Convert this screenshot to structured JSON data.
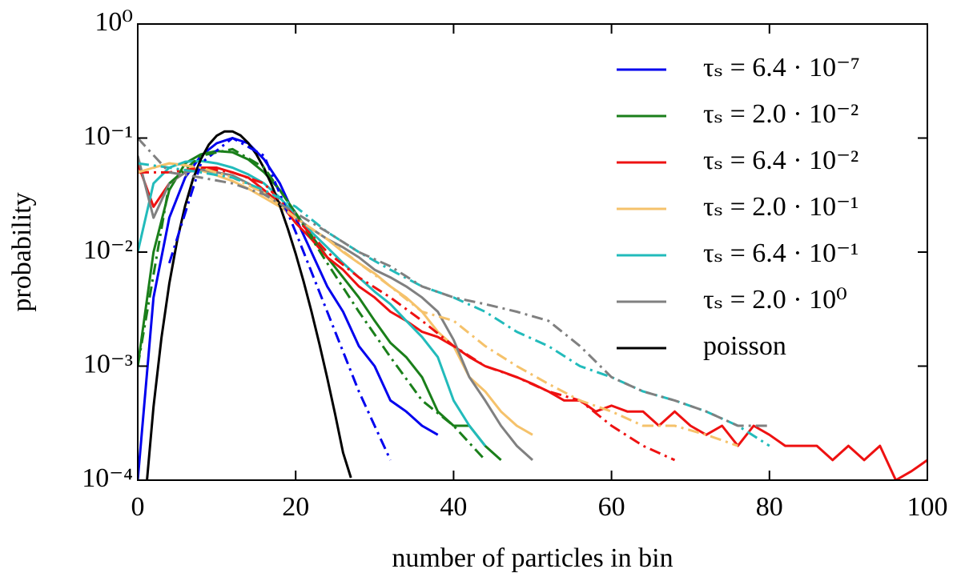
{
  "chart_data": {
    "type": "line",
    "xlabel": "number of particles in bin",
    "ylabel": "probability",
    "xlim": [
      0,
      100
    ],
    "xticks": [
      0,
      20,
      40,
      60,
      80,
      100
    ],
    "ylim": [
      0.0001,
      1
    ],
    "ylog": true,
    "yticks": [
      {
        "value": 0.0001,
        "label": "10⁻⁴"
      },
      {
        "value": 0.001,
        "label": "10⁻³"
      },
      {
        "value": 0.01,
        "label": "10⁻²"
      },
      {
        "value": 0.1,
        "label": "10⁻¹"
      },
      {
        "value": 1,
        "label": "10⁰"
      }
    ],
    "legend": "upper right",
    "series": [
      {
        "name": "τₛ = 6.4 · 10⁻⁷",
        "color": "#0000ee",
        "style": "solid",
        "x": [
          0,
          2,
          4,
          6,
          8,
          10,
          12,
          14,
          16,
          18,
          20,
          22,
          24,
          26,
          28,
          30,
          32,
          34,
          36,
          38
        ],
        "values": [
          0.0001,
          0.004,
          0.02,
          0.045,
          0.07,
          0.09,
          0.1,
          0.09,
          0.065,
          0.04,
          0.02,
          0.01,
          0.005,
          0.003,
          0.0015,
          0.001,
          0.0005,
          0.0004,
          0.0003,
          0.00025
        ]
      },
      {
        "name": "τₛ = 2.0 · 10⁻²",
        "color": "#1a7f1a",
        "style": "solid",
        "x": [
          0,
          2,
          4,
          6,
          8,
          10,
          12,
          14,
          16,
          18,
          20,
          22,
          24,
          26,
          28,
          30,
          32,
          34,
          36,
          38,
          40,
          42,
          44,
          46
        ],
        "values": [
          0.001,
          0.01,
          0.035,
          0.06,
          0.072,
          0.077,
          0.075,
          0.065,
          0.05,
          0.035,
          0.022,
          0.014,
          0.009,
          0.006,
          0.004,
          0.0025,
          0.0016,
          0.0012,
          0.0008,
          0.0004,
          0.0003,
          0.0003,
          0.0002,
          0.00015
        ]
      },
      {
        "name": "τₛ = 6.4 · 10⁻²",
        "color": "#ee1111",
        "style": "solid",
        "x": [
          0,
          2,
          4,
          6,
          8,
          10,
          12,
          14,
          16,
          18,
          20,
          22,
          24,
          26,
          28,
          30,
          32,
          34,
          36,
          38,
          40,
          42,
          44,
          46,
          48,
          50,
          52,
          54,
          56,
          58,
          60,
          62,
          64,
          66,
          68,
          70,
          72,
          74,
          76,
          78,
          80,
          82,
          84,
          86,
          88,
          90,
          92,
          94,
          96,
          98,
          100
        ],
        "values": [
          0.06,
          0.025,
          0.04,
          0.05,
          0.055,
          0.055,
          0.05,
          0.045,
          0.035,
          0.027,
          0.018,
          0.013,
          0.009,
          0.007,
          0.005,
          0.004,
          0.003,
          0.0025,
          0.002,
          0.0018,
          0.0015,
          0.0012,
          0.001,
          0.0009,
          0.0008,
          0.0007,
          0.0006,
          0.0005,
          0.0005,
          0.0004,
          0.00045,
          0.0004,
          0.0004,
          0.0003,
          0.0004,
          0.0003,
          0.00025,
          0.0003,
          0.0002,
          0.0003,
          0.00025,
          0.0002,
          0.0002,
          0.0002,
          0.00015,
          0.0002,
          0.00015,
          0.0002,
          0.0001,
          0.00012,
          0.00015
        ]
      },
      {
        "name": "τₛ = 2.0 · 10⁻¹",
        "color": "#f5c26b",
        "style": "solid",
        "x": [
          0,
          2,
          4,
          6,
          8,
          10,
          12,
          14,
          16,
          18,
          20,
          22,
          24,
          26,
          28,
          30,
          32,
          34,
          36,
          38,
          40,
          42,
          44,
          46,
          48,
          50
        ],
        "values": [
          0.05,
          0.055,
          0.06,
          0.058,
          0.052,
          0.047,
          0.042,
          0.036,
          0.03,
          0.025,
          0.02,
          0.016,
          0.013,
          0.01,
          0.008,
          0.0065,
          0.005,
          0.004,
          0.003,
          0.002,
          0.0015,
          0.0008,
          0.0006,
          0.0004,
          0.0003,
          0.00025
        ]
      },
      {
        "name": "τₛ = 6.4 · 10⁻¹",
        "color": "#22bbbb",
        "style": "solid",
        "x": [
          0,
          2,
          4,
          6,
          8,
          10,
          12,
          14,
          16,
          18,
          20,
          22,
          24,
          26,
          28,
          30,
          32,
          34,
          36,
          38,
          40,
          42,
          44
        ],
        "values": [
          0.01,
          0.04,
          0.055,
          0.062,
          0.063,
          0.06,
          0.055,
          0.048,
          0.04,
          0.03,
          0.021,
          0.015,
          0.011,
          0.008,
          0.006,
          0.0045,
          0.0035,
          0.0025,
          0.0018,
          0.0012,
          0.0005,
          0.0003,
          0.0002
        ]
      },
      {
        "name": "τₛ = 2.0 · 10⁰",
        "color": "#808080",
        "style": "solid",
        "x": [
          0,
          2,
          4,
          6,
          8,
          10,
          12,
          14,
          16,
          18,
          20,
          22,
          24,
          26,
          28,
          30,
          32,
          34,
          36,
          38,
          40,
          42,
          44,
          46,
          48,
          50
        ],
        "values": [
          0.07,
          0.02,
          0.04,
          0.05,
          0.053,
          0.05,
          0.047,
          0.04,
          0.033,
          0.026,
          0.02,
          0.016,
          0.013,
          0.011,
          0.009,
          0.007,
          0.006,
          0.005,
          0.004,
          0.003,
          0.0017,
          0.0008,
          0.0005,
          0.0003,
          0.0002,
          0.00015
        ]
      },
      {
        "name": "poisson",
        "color": "#000000",
        "style": "solid",
        "x": [
          1,
          2,
          3,
          4,
          5,
          6,
          7,
          8,
          9,
          10,
          11,
          12,
          13,
          14,
          15,
          16,
          17,
          18,
          19,
          20,
          21,
          22,
          23,
          24,
          25,
          26,
          27
        ],
        "values": [
          7.4e-05,
          0.00044,
          0.00177,
          0.0053,
          0.0127,
          0.0255,
          0.0437,
          0.0655,
          0.0874,
          0.1048,
          0.1144,
          0.1144,
          0.1056,
          0.0905,
          0.0724,
          0.0543,
          0.0383,
          0.0255,
          0.0161,
          0.00968,
          0.00553,
          0.00302,
          0.00157,
          0.000788,
          0.000378,
          0.000174,
          0.000105
        ]
      },
      {
        "color": "#0000ee",
        "style": "dashdot",
        "x": [
          4,
          8,
          12,
          16,
          20,
          24,
          28,
          32
        ],
        "values": [
          0.008,
          0.06,
          0.1,
          0.07,
          0.015,
          0.003,
          0.0006,
          0.00015
        ]
      },
      {
        "color": "#1a7f1a",
        "style": "dashdot",
        "x": [
          0,
          4,
          8,
          12,
          16,
          20,
          24,
          28,
          32,
          36,
          40,
          44
        ],
        "values": [
          0.001,
          0.04,
          0.07,
          0.08,
          0.055,
          0.022,
          0.008,
          0.003,
          0.0012,
          0.0005,
          0.0003,
          0.00015
        ]
      },
      {
        "color": "#ee1111",
        "style": "dashdot",
        "x": [
          0,
          4,
          8,
          12,
          16,
          20,
          24,
          28,
          32,
          36,
          40,
          44,
          48,
          52,
          56,
          60,
          64,
          68
        ],
        "values": [
          0.05,
          0.05,
          0.055,
          0.05,
          0.04,
          0.02,
          0.01,
          0.006,
          0.004,
          0.0025,
          0.0015,
          0.001,
          0.0008,
          0.0006,
          0.0005,
          0.0003,
          0.0002,
          0.00015
        ]
      },
      {
        "color": "#f5c26b",
        "style": "dashdot",
        "x": [
          0,
          4,
          8,
          12,
          16,
          20,
          24,
          28,
          32,
          36,
          40,
          44,
          48,
          52,
          56,
          60,
          64,
          68,
          72,
          76
        ],
        "values": [
          0.05,
          0.06,
          0.055,
          0.045,
          0.033,
          0.02,
          0.013,
          0.008,
          0.005,
          0.003,
          0.0025,
          0.0015,
          0.001,
          0.0007,
          0.0005,
          0.0004,
          0.0003,
          0.0003,
          0.00025,
          0.0002
        ]
      },
      {
        "color": "#22bbbb",
        "style": "dashdot",
        "x": [
          0,
          4,
          8,
          12,
          16,
          20,
          24,
          28,
          32,
          36,
          40,
          44,
          48,
          52,
          56,
          60,
          64,
          68,
          72,
          76,
          80
        ],
        "values": [
          0.06,
          0.055,
          0.05,
          0.045,
          0.035,
          0.025,
          0.015,
          0.01,
          0.007,
          0.005,
          0.004,
          0.003,
          0.002,
          0.0015,
          0.001,
          0.0008,
          0.0006,
          0.0005,
          0.0004,
          0.0003,
          0.0002
        ]
      },
      {
        "color": "#808080",
        "style": "dashdot",
        "x": [
          0,
          4,
          8,
          12,
          16,
          20,
          24,
          28,
          32,
          36,
          40,
          44,
          48,
          52,
          56,
          60,
          64,
          68,
          72,
          76,
          80
        ],
        "values": [
          0.1,
          0.05,
          0.045,
          0.04,
          0.032,
          0.022,
          0.015,
          0.01,
          0.0075,
          0.005,
          0.004,
          0.0035,
          0.003,
          0.0025,
          0.0015,
          0.0008,
          0.0006,
          0.0005,
          0.0004,
          0.0003,
          0.0003
        ]
      }
    ]
  }
}
